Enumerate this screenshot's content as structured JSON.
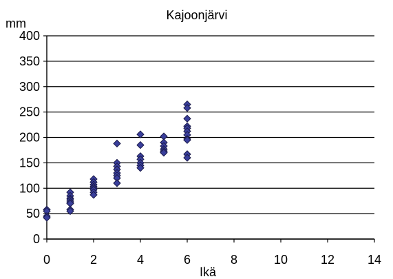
{
  "chart_data": {
    "type": "scatter",
    "title": "Kajoonjärvi",
    "xlabel": "Ikä",
    "ylabel": "mm",
    "xlim": [
      0,
      14
    ],
    "ylim": [
      0,
      400
    ],
    "xticks": [
      0,
      2,
      4,
      6,
      8,
      10,
      12,
      14
    ],
    "yticks": [
      0,
      50,
      100,
      150,
      200,
      250,
      300,
      350,
      400
    ],
    "grid": {
      "horizontal": true,
      "vertical": false
    },
    "legend": "none",
    "marker": {
      "shape": "diamond",
      "fill": "#3a3f9c",
      "stroke": "#1a1a4a"
    },
    "points": [
      {
        "x": 0,
        "y": 58
      },
      {
        "x": 0,
        "y": 55
      },
      {
        "x": 0,
        "y": 45
      },
      {
        "x": 0,
        "y": 42
      },
      {
        "x": 1,
        "y": 92
      },
      {
        "x": 1,
        "y": 85
      },
      {
        "x": 1,
        "y": 80
      },
      {
        "x": 1,
        "y": 77
      },
      {
        "x": 1,
        "y": 73
      },
      {
        "x": 1,
        "y": 70
      },
      {
        "x": 1,
        "y": 58
      },
      {
        "x": 1,
        "y": 55
      },
      {
        "x": 2,
        "y": 118
      },
      {
        "x": 2,
        "y": 112
      },
      {
        "x": 2,
        "y": 107
      },
      {
        "x": 2,
        "y": 103
      },
      {
        "x": 2,
        "y": 100
      },
      {
        "x": 2,
        "y": 97
      },
      {
        "x": 2,
        "y": 92
      },
      {
        "x": 2,
        "y": 87
      },
      {
        "x": 3,
        "y": 188
      },
      {
        "x": 3,
        "y": 150
      },
      {
        "x": 3,
        "y": 143
      },
      {
        "x": 3,
        "y": 137
      },
      {
        "x": 3,
        "y": 130
      },
      {
        "x": 3,
        "y": 125
      },
      {
        "x": 3,
        "y": 120
      },
      {
        "x": 3,
        "y": 110
      },
      {
        "x": 4,
        "y": 206
      },
      {
        "x": 4,
        "y": 185
      },
      {
        "x": 4,
        "y": 163
      },
      {
        "x": 4,
        "y": 157
      },
      {
        "x": 4,
        "y": 150
      },
      {
        "x": 4,
        "y": 145
      },
      {
        "x": 4,
        "y": 140
      },
      {
        "x": 5,
        "y": 202
      },
      {
        "x": 5,
        "y": 190
      },
      {
        "x": 5,
        "y": 183
      },
      {
        "x": 5,
        "y": 177
      },
      {
        "x": 5,
        "y": 173
      },
      {
        "x": 5,
        "y": 170
      },
      {
        "x": 6,
        "y": 265
      },
      {
        "x": 6,
        "y": 258
      },
      {
        "x": 6,
        "y": 237
      },
      {
        "x": 6,
        "y": 222
      },
      {
        "x": 6,
        "y": 218
      },
      {
        "x": 6,
        "y": 212
      },
      {
        "x": 6,
        "y": 205
      },
      {
        "x": 6,
        "y": 197
      },
      {
        "x": 6,
        "y": 195
      },
      {
        "x": 6,
        "y": 167
      },
      {
        "x": 6,
        "y": 160
      }
    ]
  }
}
